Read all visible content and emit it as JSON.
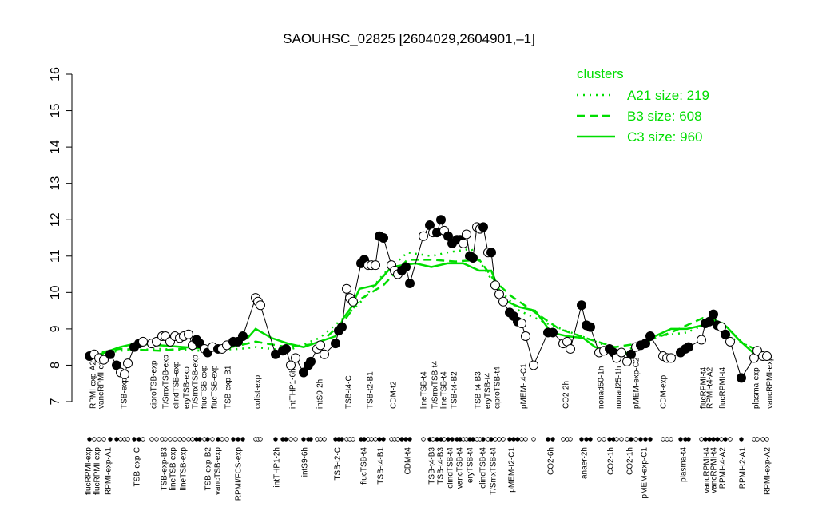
{
  "chart_data": {
    "type": "line",
    "title": "SAOUHSC_02825 [2604029,2604901,–1]",
    "ylim": [
      7,
      16
    ],
    "yticks": [
      7,
      8,
      9,
      10,
      11,
      12,
      13,
      14,
      15,
      16
    ],
    "xlim": [
      100,
      970
    ],
    "legend_title": "clusters",
    "legend_color": "#00dd00",
    "points": {
      "x": [
        112,
        118,
        124,
        130,
        138,
        146,
        151,
        156,
        160,
        168,
        174,
        179,
        190,
        196,
        203,
        207,
        213,
        219,
        225,
        230,
        236,
        241,
        246,
        250,
        256,
        260,
        266,
        273,
        278,
        284,
        292,
        298,
        304,
        320,
        323,
        326,
        345,
        354,
        358,
        364,
        370,
        380,
        386,
        389,
        397,
        401,
        406,
        420,
        424,
        428,
        434,
        438,
        442,
        452,
        456,
        461,
        465,
        470,
        475,
        480,
        490,
        494,
        498,
        503,
        508,
        513,
        530,
        538,
        542,
        547,
        552,
        556,
        561,
        566,
        572,
        576,
        580,
        584,
        588,
        592,
        597,
        601,
        605,
        611,
        615,
        620,
        625,
        630,
        638,
        643,
        648,
        653,
        658,
        668,
        686,
        692,
        705,
        710,
        714,
        728,
        734,
        739,
        750,
        756,
        763,
        768,
        772,
        778,
        785,
        790,
        796,
        802,
        808,
        814,
        830,
        835,
        840,
        852,
        858,
        862,
        878,
        883,
        888,
        893,
        898,
        903,
        908,
        914,
        928,
        944,
        948,
        955,
        960
      ],
      "values": [
        8.25,
        8.3,
        8.2,
        8.15,
        8.3,
        8.0,
        7.8,
        7.75,
        8.05,
        8.5,
        8.6,
        8.65,
        8.6,
        8.65,
        8.8,
        8.8,
        8.65,
        8.8,
        8.75,
        8.8,
        8.85,
        8.55,
        8.7,
        8.6,
        8.45,
        8.35,
        8.5,
        8.45,
        8.45,
        8.55,
        8.65,
        8.65,
        8.8,
        9.85,
        9.75,
        9.65,
        8.3,
        8.4,
        8.45,
        8.0,
        8.2,
        7.8,
        8.0,
        8.1,
        8.45,
        8.55,
        8.3,
        8.6,
        8.95,
        9.05,
        10.1,
        9.85,
        9.75,
        10.8,
        10.9,
        10.75,
        10.75,
        10.75,
        11.55,
        11.5,
        10.75,
        10.6,
        10.5,
        10.6,
        10.7,
        10.25,
        11.55,
        11.85,
        11.65,
        11.65,
        12.0,
        11.7,
        11.55,
        11.35,
        11.45,
        11.45,
        11.35,
        11.6,
        11.0,
        10.95,
        11.8,
        11.75,
        11.8,
        11.1,
        11.1,
        10.2,
        9.95,
        9.75,
        9.45,
        9.35,
        9.2,
        9.15,
        8.8,
        8.0,
        8.9,
        8.9,
        8.6,
        8.65,
        8.45,
        9.65,
        9.1,
        9.05,
        8.35,
        8.4,
        8.45,
        8.35,
        8.2,
        8.35,
        8.1,
        8.3,
        8.5,
        8.55,
        8.6,
        8.8,
        8.25,
        8.2,
        8.2,
        8.35,
        8.45,
        8.5,
        8.7,
        9.15,
        9.2,
        9.4,
        9.1,
        9.05,
        8.85,
        8.65,
        7.65,
        8.2,
        8.4,
        8.25,
        8.25
      ],
      "filled": [
        true,
        false,
        false,
        false,
        true,
        true,
        false,
        false,
        false,
        true,
        true,
        false,
        false,
        false,
        false,
        false,
        false,
        false,
        false,
        false,
        false,
        false,
        true,
        true,
        false,
        true,
        false,
        true,
        false,
        false,
        true,
        true,
        true,
        false,
        false,
        false,
        true,
        true,
        true,
        false,
        false,
        true,
        true,
        true,
        false,
        false,
        false,
        true,
        true,
        true,
        false,
        false,
        false,
        true,
        true,
        false,
        false,
        false,
        true,
        true,
        false,
        false,
        false,
        true,
        true,
        true,
        false,
        true,
        false,
        true,
        true,
        false,
        true,
        true,
        true,
        true,
        false,
        false,
        true,
        true,
        false,
        false,
        true,
        false,
        true,
        false,
        false,
        false,
        true,
        true,
        true,
        false,
        false,
        false,
        true,
        true,
        false,
        false,
        false,
        true,
        true,
        true,
        false,
        false,
        true,
        true,
        false,
        false,
        false,
        true,
        false,
        true,
        true,
        true,
        false,
        false,
        false,
        true,
        true,
        true,
        false,
        true,
        true,
        true,
        true,
        false,
        true,
        false,
        true,
        false,
        false,
        false,
        false
      ]
    },
    "series": [
      {
        "name": "A21 size: 219",
        "color": "#00dd00",
        "dash": "dotted",
        "x": [
          112,
          150,
          200,
          250,
          300,
          320,
          360,
          400,
          430,
          450,
          480,
          510,
          540,
          560,
          590,
          620,
          650,
          690,
          740,
          780,
          820,
          860,
          890,
          920,
          965
        ],
        "values": [
          8.25,
          8.4,
          8.45,
          8.4,
          8.45,
          8.5,
          8.4,
          8.75,
          9.3,
          9.7,
          10.5,
          11.1,
          11.0,
          11.1,
          11.2,
          10.2,
          9.5,
          9.1,
          8.7,
          8.35,
          8.8,
          8.9,
          9.2,
          8.7,
          8.25
        ]
      },
      {
        "name": "B3 size: 608",
        "color": "#00dd00",
        "dash": "dashed",
        "x": [
          112,
          150,
          200,
          250,
          290,
          320,
          360,
          400,
          430,
          450,
          480,
          510,
          540,
          570,
          600,
          620,
          640,
          660,
          700,
          740,
          770,
          800,
          840,
          880,
          905,
          930,
          965
        ],
        "values": [
          8.3,
          8.45,
          8.4,
          8.5,
          8.5,
          8.65,
          8.5,
          8.6,
          9.2,
          9.8,
          10.2,
          10.9,
          10.9,
          10.85,
          10.9,
          10.3,
          9.9,
          9.6,
          9.0,
          8.7,
          8.5,
          8.6,
          8.9,
          9.3,
          9.15,
          8.6,
          8.25
        ]
      },
      {
        "name": "C3 size: 960",
        "color": "#00dd00",
        "dash": "solid",
        "x": [
          112,
          150,
          170,
          200,
          230,
          260,
          290,
          310,
          320,
          340,
          360,
          380,
          400,
          420,
          430,
          440,
          450,
          470,
          490,
          505,
          520,
          540,
          560,
          580,
          600,
          615,
          630,
          650,
          670,
          690,
          710,
          730,
          745,
          760,
          780,
          800,
          820,
          840,
          860,
          880,
          895,
          910,
          925,
          945,
          965
        ],
        "values": [
          8.2,
          8.5,
          8.6,
          8.55,
          8.5,
          8.45,
          8.6,
          8.75,
          9.0,
          8.75,
          8.6,
          8.5,
          8.65,
          8.8,
          9.3,
          9.6,
          10.1,
          10.2,
          10.7,
          10.75,
          10.8,
          10.7,
          10.8,
          10.8,
          10.6,
          10.6,
          9.8,
          9.6,
          9.5,
          8.9,
          8.8,
          8.75,
          8.5,
          8.4,
          8.3,
          8.45,
          8.8,
          9.0,
          9.0,
          9.1,
          9.25,
          9.05,
          8.7,
          8.3,
          8.25
        ]
      }
    ],
    "xticks_top": [
      {
        "value": 116,
        "label": "RPMI-exp-A2"
      },
      {
        "value": 126,
        "label": "vancRPMI-exp"
      },
      {
        "value": 155,
        "label": "TSB-exp-A"
      },
      {
        "value": 192,
        "label": "ciproTSB-exp"
      },
      {
        "value": 207,
        "label": "T/SmxTSB-exp"
      },
      {
        "value": 220,
        "label": "clindTSB-exp"
      },
      {
        "value": 233,
        "label": "eryTSB-exp"
      },
      {
        "value": 244,
        "label": "T/SmxTSB-exp"
      },
      {
        "value": 255,
        "label": "flucTSB-exp"
      },
      {
        "value": 268,
        "label": "flucTSB-exp"
      },
      {
        "value": 285,
        "label": "TSB-exp-B1"
      },
      {
        "value": 322,
        "label": "colist-exp"
      },
      {
        "value": 366,
        "label": "intTHP1-6h"
      },
      {
        "value": 400,
        "label": "intS9-2h"
      },
      {
        "value": 436,
        "label": "TSB-t4-C"
      },
      {
        "value": 463,
        "label": "TSB-t2-B1"
      },
      {
        "value": 492,
        "label": "CDM-t2"
      },
      {
        "value": 530,
        "label": "lineTSB-t4"
      },
      {
        "value": 544,
        "label": "T/SmxTSB-t4"
      },
      {
        "value": 555,
        "label": "lineTSB-t4"
      },
      {
        "value": 568,
        "label": "TSB-t4-B2"
      },
      {
        "value": 598,
        "label": "TSB-t4-B3"
      },
      {
        "value": 610,
        "label": "eryTSB-t4"
      },
      {
        "value": 622,
        "label": "ciproTSB-t4"
      },
      {
        "value": 655,
        "label": "pMEM-t4-C1"
      },
      {
        "value": 708,
        "label": "CO2-2h"
      },
      {
        "value": 752,
        "label": "nonad50-1h"
      },
      {
        "value": 774,
        "label": "nonad25-1h"
      },
      {
        "value": 796,
        "label": "pMEM-exp-C2"
      },
      {
        "value": 830,
        "label": "CDM-exp"
      },
      {
        "value": 880,
        "label": "flucRPMI-t4"
      },
      {
        "value": 888,
        "label": "RPMI-t4-A2"
      },
      {
        "value": 904,
        "label": "flucRPMI-t4"
      },
      {
        "value": 946,
        "label": "plasma-exp"
      },
      {
        "value": 963,
        "label": "vancRPMI-exp"
      }
    ],
    "xticks_bottom": [
      {
        "value": 110,
        "label": "flucRPMI-exp"
      },
      {
        "value": 121,
        "label": "flucRPMI-exp"
      },
      {
        "value": 135,
        "label": "RPMI-exp-A1"
      },
      {
        "value": 171,
        "label": "TSB-exp-C"
      },
      {
        "value": 205,
        "label": "TSB-exp-B3"
      },
      {
        "value": 216,
        "label": "lineTSB-exp"
      },
      {
        "value": 229,
        "label": "lineTSB-exp"
      },
      {
        "value": 260,
        "label": "TSB-exp-B2"
      },
      {
        "value": 272,
        "label": "vancTSB-exp"
      },
      {
        "value": 298,
        "label": "RPMI/FCS-exp"
      },
      {
        "value": 346,
        "label": "intTHP1-2h"
      },
      {
        "value": 381,
        "label": "intS9-6h"
      },
      {
        "value": 422,
        "label": "TSB-t2-C"
      },
      {
        "value": 455,
        "label": "flucTSB-t4"
      },
      {
        "value": 476,
        "label": "TSB-t4-B1"
      },
      {
        "value": 510,
        "label": "CDM-t4"
      },
      {
        "value": 540,
        "label": "TSB-t4-B3"
      },
      {
        "value": 551,
        "label": "TSB-t4-B3"
      },
      {
        "value": 563,
        "label": "clindTSB-t4"
      },
      {
        "value": 575,
        "label": "vancTSB-t4"
      },
      {
        "value": 588,
        "label": "eryTSB-t4"
      },
      {
        "value": 604,
        "label": "clindTSB-t4"
      },
      {
        "value": 617,
        "label": "T/SmxTSB-t4"
      },
      {
        "value": 640,
        "label": "pMEM-t2-C1"
      },
      {
        "value": 689,
        "label": "CO2-6h"
      },
      {
        "value": 731,
        "label": "anaer-2h"
      },
      {
        "value": 764,
        "label": "CO2-1h"
      },
      {
        "value": 788,
        "label": "CO2-1h"
      },
      {
        "value": 806,
        "label": "pMEM-exp-C1"
      },
      {
        "value": 855,
        "label": "plasma-t4"
      },
      {
        "value": 884,
        "label": "vancRPMI-t4"
      },
      {
        "value": 893,
        "label": "vancRPMI-t4"
      },
      {
        "value": 904,
        "label": "RPMI-t4-A2"
      },
      {
        "value": 929,
        "label": "RPMI-t2-A1"
      },
      {
        "value": 960,
        "label": "RPMI-exp-A2"
      }
    ]
  }
}
